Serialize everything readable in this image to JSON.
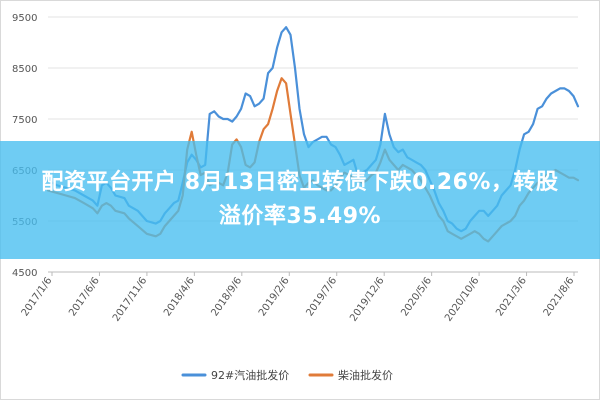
{
  "chart_data": {
    "type": "line",
    "title": "",
    "xlabel": "",
    "ylabel": "",
    "ylim": [
      4500,
      9500
    ],
    "y_ticks": [
      "9500",
      "8500",
      "7500",
      "6500",
      "5500",
      "4500"
    ],
    "x_tick_labels": [
      "2017/1/6",
      "2017/6/6",
      "2017/11/6",
      "2018/4/6",
      "2018/9/6",
      "2019/2/6",
      "2019/7/6",
      "2019/12/6",
      "2020/5/6",
      "2020/10/6",
      "2021/3/6",
      "2021/8/6"
    ],
    "grid": true,
    "legend_position": "bottom",
    "series": [
      {
        "name": "92#汽油批发价",
        "color": "#4a90d9",
        "values": [
          [
            0,
            6300
          ],
          [
            2,
            6200
          ],
          [
            4,
            6150
          ],
          [
            6,
            6100
          ],
          [
            8,
            6000
          ],
          [
            10,
            5900
          ],
          [
            11,
            5800
          ],
          [
            12,
            6200
          ],
          [
            13,
            6250
          ],
          [
            14,
            6150
          ],
          [
            15,
            6000
          ],
          [
            17,
            5950
          ],
          [
            18,
            5800
          ],
          [
            20,
            5700
          ],
          [
            22,
            5500
          ],
          [
            24,
            5450
          ],
          [
            25,
            5500
          ],
          [
            26,
            5650
          ],
          [
            27,
            5750
          ],
          [
            28,
            5850
          ],
          [
            29,
            5900
          ],
          [
            30,
            6250
          ],
          [
            31,
            6650
          ],
          [
            32,
            6800
          ],
          [
            33,
            6700
          ],
          [
            34,
            6550
          ],
          [
            35,
            6600
          ],
          [
            36,
            7600
          ],
          [
            37,
            7650
          ],
          [
            38,
            7550
          ],
          [
            39,
            7500
          ],
          [
            40,
            7500
          ],
          [
            41,
            7450
          ],
          [
            42,
            7550
          ],
          [
            43,
            7700
          ],
          [
            44,
            8000
          ],
          [
            45,
            7950
          ],
          [
            46,
            7750
          ],
          [
            47,
            7800
          ],
          [
            48,
            7900
          ],
          [
            49,
            8400
          ],
          [
            50,
            8500
          ],
          [
            51,
            8900
          ],
          [
            52,
            9200
          ],
          [
            53,
            9300
          ],
          [
            54,
            9150
          ],
          [
            55,
            8500
          ],
          [
            56,
            7700
          ],
          [
            57,
            7200
          ],
          [
            58,
            6950
          ],
          [
            59,
            7050
          ],
          [
            60,
            7100
          ],
          [
            61,
            7150
          ],
          [
            62,
            7150
          ],
          [
            63,
            7000
          ],
          [
            64,
            6950
          ],
          [
            65,
            6800
          ],
          [
            66,
            6600
          ],
          [
            67,
            6650
          ],
          [
            68,
            6700
          ],
          [
            69,
            6400
          ],
          [
            70,
            6450
          ],
          [
            71,
            6500
          ],
          [
            72,
            6600
          ],
          [
            73,
            6700
          ],
          [
            74,
            7000
          ],
          [
            75,
            7600
          ],
          [
            76,
            7200
          ],
          [
            77,
            6950
          ],
          [
            78,
            6850
          ],
          [
            79,
            6900
          ],
          [
            80,
            6750
          ],
          [
            81,
            6700
          ],
          [
            82,
            6650
          ],
          [
            83,
            6600
          ],
          [
            84,
            6500
          ],
          [
            85,
            6300
          ],
          [
            86,
            6100
          ],
          [
            87,
            5850
          ],
          [
            88,
            5700
          ],
          [
            89,
            5500
          ],
          [
            90,
            5450
          ],
          [
            91,
            5350
          ],
          [
            92,
            5300
          ],
          [
            93,
            5350
          ],
          [
            94,
            5500
          ],
          [
            95,
            5600
          ],
          [
            96,
            5700
          ],
          [
            97,
            5700
          ],
          [
            98,
            5600
          ],
          [
            99,
            5700
          ],
          [
            100,
            5800
          ],
          [
            101,
            6000
          ],
          [
            102,
            6100
          ],
          [
            103,
            6200
          ],
          [
            104,
            6500
          ],
          [
            105,
            6900
          ],
          [
            106,
            7200
          ],
          [
            107,
            7250
          ],
          [
            108,
            7400
          ],
          [
            109,
            7700
          ],
          [
            110,
            7750
          ],
          [
            111,
            7900
          ],
          [
            112,
            8000
          ],
          [
            113,
            8050
          ],
          [
            114,
            8100
          ],
          [
            115,
            8100
          ],
          [
            116,
            8050
          ],
          [
            117,
            7950
          ],
          [
            118,
            7750
          ]
        ]
      },
      {
        "name": "柴油批发价",
        "color": "#e07b39",
        "values": [
          [
            0,
            6100
          ],
          [
            2,
            6050
          ],
          [
            4,
            6000
          ],
          [
            6,
            5950
          ],
          [
            8,
            5850
          ],
          [
            10,
            5750
          ],
          [
            11,
            5650
          ],
          [
            12,
            5800
          ],
          [
            13,
            5850
          ],
          [
            14,
            5800
          ],
          [
            15,
            5700
          ],
          [
            17,
            5650
          ],
          [
            18,
            5550
          ],
          [
            20,
            5400
          ],
          [
            22,
            5250
          ],
          [
            24,
            5200
          ],
          [
            25,
            5250
          ],
          [
            26,
            5400
          ],
          [
            27,
            5500
          ],
          [
            28,
            5600
          ],
          [
            29,
            5700
          ],
          [
            30,
            6000
          ],
          [
            31,
            6900
          ],
          [
            32,
            7250
          ],
          [
            33,
            6800
          ],
          [
            34,
            6400
          ],
          [
            35,
            6450
          ],
          [
            36,
            6200
          ],
          [
            37,
            6250
          ],
          [
            38,
            6250
          ],
          [
            39,
            6200
          ],
          [
            40,
            6450
          ],
          [
            41,
            7000
          ],
          [
            42,
            7100
          ],
          [
            43,
            6950
          ],
          [
            44,
            6600
          ],
          [
            45,
            6550
          ],
          [
            46,
            6650
          ],
          [
            47,
            7050
          ],
          [
            48,
            7300
          ],
          [
            49,
            7400
          ],
          [
            50,
            7700
          ],
          [
            51,
            8050
          ],
          [
            52,
            8300
          ],
          [
            53,
            8200
          ],
          [
            54,
            7600
          ],
          [
            55,
            7000
          ],
          [
            56,
            6400
          ],
          [
            57,
            6150
          ],
          [
            58,
            6250
          ],
          [
            59,
            6300
          ],
          [
            60,
            6200
          ],
          [
            61,
            6150
          ],
          [
            62,
            6100
          ],
          [
            63,
            6100
          ],
          [
            64,
            6200
          ],
          [
            65,
            6350
          ],
          [
            66,
            6450
          ],
          [
            67,
            6400
          ],
          [
            68,
            6350
          ],
          [
            69,
            6300
          ],
          [
            70,
            6250
          ],
          [
            71,
            6300
          ],
          [
            72,
            6400
          ],
          [
            73,
            6450
          ],
          [
            74,
            6650
          ],
          [
            75,
            6900
          ],
          [
            76,
            6700
          ],
          [
            77,
            6600
          ],
          [
            78,
            6500
          ],
          [
            79,
            6600
          ],
          [
            80,
            6550
          ],
          [
            81,
            6500
          ],
          [
            82,
            6400
          ],
          [
            83,
            6300
          ],
          [
            84,
            6150
          ],
          [
            85,
            6000
          ],
          [
            86,
            5800
          ],
          [
            87,
            5600
          ],
          [
            88,
            5500
          ],
          [
            89,
            5300
          ],
          [
            90,
            5250
          ],
          [
            91,
            5200
          ],
          [
            92,
            5150
          ],
          [
            93,
            5200
          ],
          [
            94,
            5250
          ],
          [
            95,
            5300
          ],
          [
            96,
            5250
          ],
          [
            97,
            5150
          ],
          [
            98,
            5100
          ],
          [
            99,
            5200
          ],
          [
            100,
            5300
          ],
          [
            101,
            5400
          ],
          [
            102,
            5450
          ],
          [
            103,
            5500
          ],
          [
            104,
            5600
          ],
          [
            105,
            5800
          ],
          [
            106,
            5900
          ],
          [
            107,
            6050
          ],
          [
            108,
            6150
          ],
          [
            109,
            6250
          ],
          [
            110,
            6300
          ],
          [
            111,
            6400
          ],
          [
            112,
            6450
          ],
          [
            113,
            6500
          ],
          [
            114,
            6450
          ],
          [
            115,
            6400
          ],
          [
            116,
            6350
          ],
          [
            117,
            6350
          ],
          [
            118,
            6300
          ]
        ]
      }
    ]
  },
  "banner": {
    "line1": "配资平台开户 8月13日密卫转债下跌0.26%，转股",
    "line2": "溢价率35.49%"
  }
}
